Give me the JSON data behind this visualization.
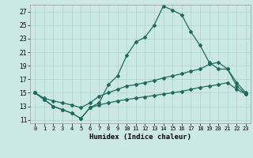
{
  "title": "",
  "xlabel": "Humidex (Indice chaleur)",
  "bg_color": "#cbe8e4",
  "grid_color": "#b0d5cf",
  "line_color": "#1e6b5e",
  "xlim": [
    -0.5,
    23.5
  ],
  "ylim": [
    10.5,
    28.0
  ],
  "yticks": [
    11,
    13,
    15,
    17,
    19,
    21,
    23,
    25,
    27
  ],
  "xticks": [
    0,
    1,
    2,
    3,
    4,
    5,
    6,
    7,
    8,
    9,
    10,
    11,
    12,
    13,
    14,
    15,
    16,
    17,
    18,
    19,
    20,
    21,
    22,
    23
  ],
  "line1_x": [
    0,
    1,
    2,
    3,
    4,
    5,
    6,
    7,
    8,
    9,
    10,
    11,
    12,
    13,
    14,
    15,
    16,
    17,
    18,
    19,
    20,
    21,
    22,
    23
  ],
  "line1_y": [
    15.0,
    14.0,
    13.0,
    12.5,
    12.0,
    11.2,
    12.8,
    13.5,
    16.2,
    17.5,
    20.5,
    22.5,
    23.2,
    25.0,
    27.8,
    27.2,
    26.5,
    24.0,
    22.0,
    19.5,
    18.5,
    18.5,
    16.0,
    14.8
  ],
  "line2_x": [
    0,
    1,
    2,
    3,
    4,
    5,
    6,
    7,
    8,
    9,
    10,
    11,
    12,
    13,
    14,
    15,
    16,
    17,
    18,
    19,
    20,
    21,
    22,
    23
  ],
  "line2_y": [
    15.0,
    14.2,
    13.8,
    13.5,
    13.2,
    12.8,
    13.5,
    14.5,
    15.0,
    15.5,
    16.0,
    16.2,
    16.5,
    16.8,
    17.2,
    17.5,
    17.8,
    18.2,
    18.5,
    19.2,
    19.5,
    18.5,
    16.5,
    15.0
  ],
  "line3_x": [
    0,
    1,
    2,
    3,
    4,
    5,
    6,
    7,
    8,
    9,
    10,
    11,
    12,
    13,
    14,
    15,
    16,
    17,
    18,
    19,
    20,
    21,
    22,
    23
  ],
  "line3_y": [
    15.0,
    14.0,
    13.0,
    12.5,
    12.0,
    11.2,
    12.8,
    13.2,
    13.5,
    13.8,
    14.0,
    14.2,
    14.4,
    14.6,
    14.8,
    15.0,
    15.2,
    15.5,
    15.8,
    16.0,
    16.2,
    16.5,
    15.5,
    14.8
  ]
}
